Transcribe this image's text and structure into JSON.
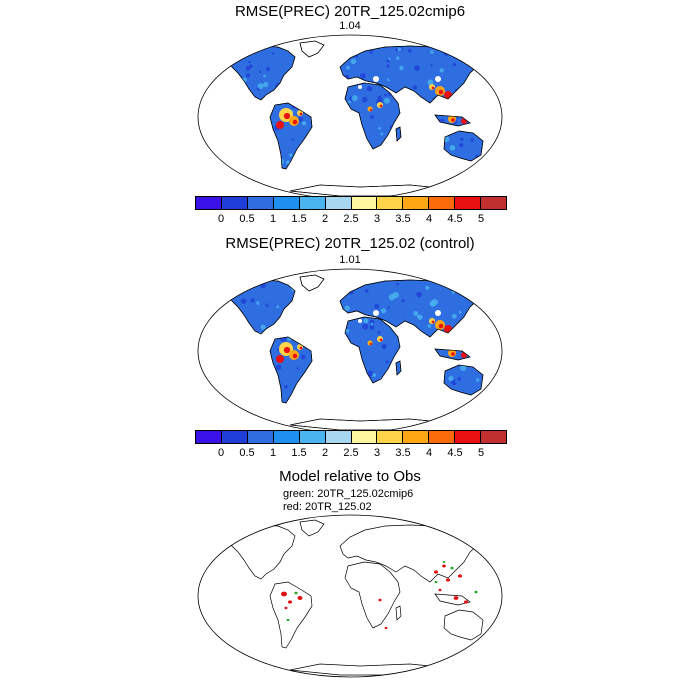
{
  "panel1": {
    "title": "RMSE(PREC) 20TR_125.02cmip6",
    "value": "1.04"
  },
  "panel2": {
    "title": "RMSE(PREC) 20TR_125.02 (control)",
    "value": "1.01"
  },
  "panel3": {
    "title": "Model relative to Obs",
    "line1": "green: 20TR_125.02cmip6",
    "line2": "red: 20TR_125.02",
    "green_color": "#22aa22",
    "red_color": "#e01010"
  },
  "colorbar": {
    "colors": [
      "#3a12e8",
      "#1f3fd8",
      "#2f6ee0",
      "#1e90f0",
      "#4ab4f0",
      "#a6d6f0",
      "#fff7a0",
      "#ffd448",
      "#ffa614",
      "#f96a0a",
      "#e81010",
      "#c03030"
    ],
    "labels": [
      "0",
      "0.5",
      "1",
      "1.5",
      "2",
      "2.5",
      "3",
      "3.5",
      "4",
      "4.5",
      "5"
    ]
  },
  "map_colors": {
    "land_base": "#2f6ee0",
    "land_dark": "#1f3fd8",
    "land_light": "#4ab4f0",
    "hot_1": "#ffd448",
    "hot_2": "#ffa614",
    "hot_3": "#e81010",
    "ice_gap": "#ffffff"
  }
}
